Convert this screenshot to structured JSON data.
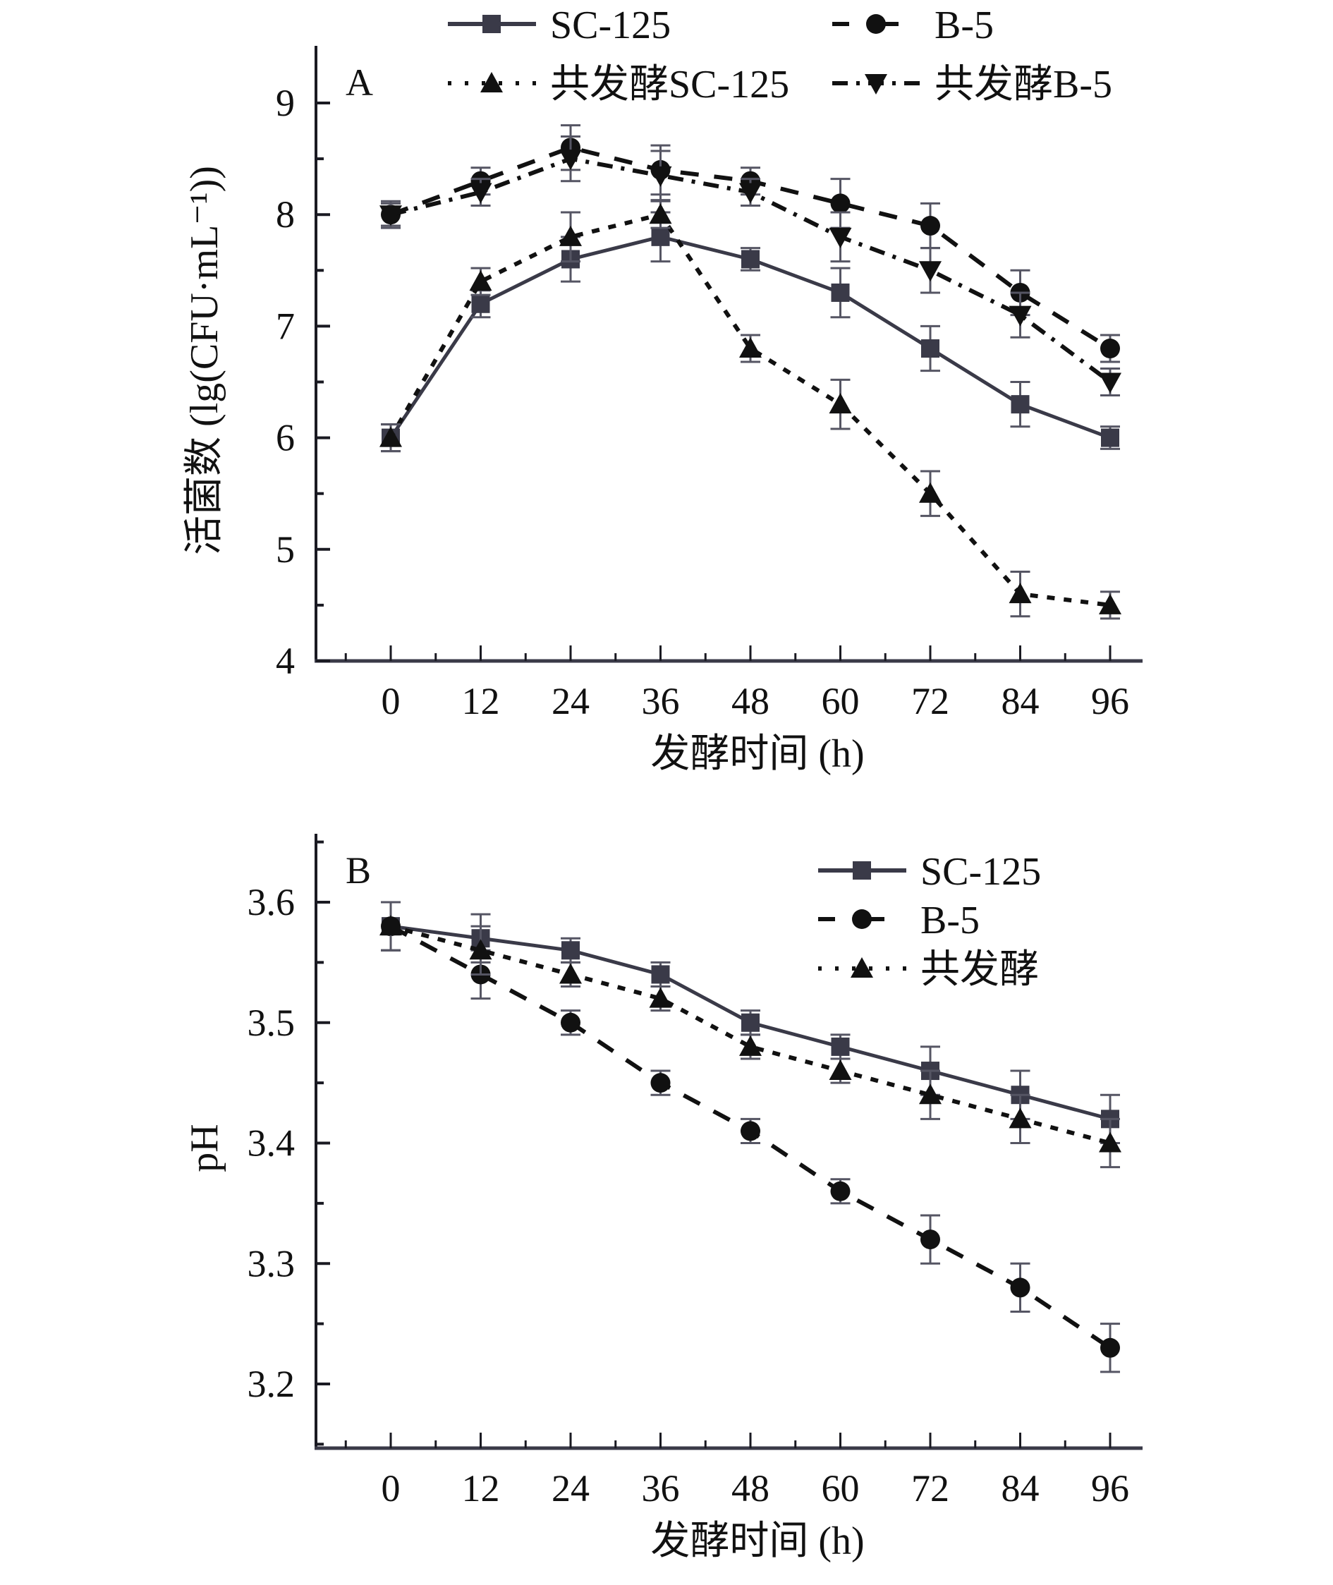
{
  "chart_data": [
    {
      "type": "line",
      "panel_label": "A",
      "title": "",
      "xlabel": "发酵时间 (h)",
      "ylabel": "活菌数 (lg(CFU·mL⁻¹))",
      "x": [
        0,
        12,
        24,
        36,
        48,
        60,
        72,
        84,
        96
      ],
      "x_ticks": [
        "0",
        "12",
        "24",
        "36",
        "48",
        "60",
        "72",
        "84",
        "96"
      ],
      "xlim": [
        -10,
        100
      ],
      "ylim": [
        4,
        9.5
      ],
      "y_ticks": [
        "4",
        "5",
        "6",
        "7",
        "8",
        "9"
      ],
      "y_tick_values": [
        4,
        5,
        6,
        7,
        8,
        9
      ],
      "grid": false,
      "legend_position": "top",
      "series": [
        {
          "name": "SC-125",
          "marker": "square",
          "line": "solid",
          "color": "#3a3a48",
          "values": [
            6.0,
            7.2,
            7.6,
            7.8,
            7.6,
            7.3,
            6.8,
            6.3,
            6.0
          ],
          "errors": [
            0.12,
            0.12,
            0.2,
            0.22,
            0.1,
            0.22,
            0.2,
            0.2,
            0.1
          ]
        },
        {
          "name": "B-5",
          "marker": "circle",
          "line": "dashed",
          "color": "#111111",
          "values": [
            8.0,
            8.3,
            8.6,
            8.4,
            8.3,
            8.1,
            7.9,
            7.3,
            6.8
          ],
          "errors": [
            0.1,
            0.12,
            0.2,
            0.22,
            0.12,
            0.22,
            0.2,
            0.2,
            0.12
          ]
        },
        {
          "name": "共发酵SC-125",
          "marker": "triangle-up",
          "line": "dotted",
          "color": "#111111",
          "values": [
            6.0,
            7.4,
            7.8,
            8.0,
            6.8,
            6.3,
            5.5,
            4.6,
            4.5
          ],
          "errors": [
            0.12,
            0.12,
            0.22,
            0.12,
            0.12,
            0.22,
            0.2,
            0.2,
            0.12
          ]
        },
        {
          "name": "共发酵B-5",
          "marker": "triangle-down",
          "line": "dashdot",
          "color": "#111111",
          "values": [
            8.0,
            8.2,
            8.5,
            8.35,
            8.2,
            7.8,
            7.5,
            7.1,
            6.5
          ],
          "errors": [
            0.12,
            0.12,
            0.2,
            0.22,
            0.12,
            0.22,
            0.2,
            0.2,
            0.12
          ]
        }
      ]
    },
    {
      "type": "line",
      "panel_label": "B",
      "title": "",
      "xlabel": "发酵时间 (h)",
      "ylabel": "pH",
      "x": [
        0,
        12,
        24,
        36,
        48,
        60,
        72,
        84,
        96
      ],
      "x_ticks": [
        "0",
        "12",
        "24",
        "36",
        "48",
        "60",
        "72",
        "84",
        "96"
      ],
      "xlim": [
        -10,
        100
      ],
      "ylim": [
        3.14,
        3.65
      ],
      "y_ticks": [
        "3.2",
        "3.3",
        "3.4",
        "3.5",
        "3.6"
      ],
      "y_tick_values": [
        3.2,
        3.3,
        3.4,
        3.5,
        3.6
      ],
      "grid": false,
      "legend_position": "top-right",
      "series": [
        {
          "name": "SC-125",
          "marker": "square",
          "line": "solid",
          "color": "#3a3a48",
          "values": [
            3.58,
            3.57,
            3.56,
            3.54,
            3.5,
            3.48,
            3.46,
            3.44,
            3.42
          ],
          "errors": [
            0.02,
            0.02,
            0.01,
            0.01,
            0.01,
            0.01,
            0.02,
            0.02,
            0.02
          ]
        },
        {
          "name": "B-5",
          "marker": "circle",
          "line": "dashed",
          "color": "#111111",
          "values": [
            3.58,
            3.54,
            3.5,
            3.45,
            3.41,
            3.36,
            3.32,
            3.28,
            3.23
          ],
          "errors": [
            0.02,
            0.02,
            0.01,
            0.01,
            0.01,
            0.01,
            0.02,
            0.02,
            0.02
          ]
        },
        {
          "name": "共发酵",
          "marker": "triangle-up",
          "line": "dotted",
          "color": "#111111",
          "values": [
            3.58,
            3.56,
            3.54,
            3.52,
            3.48,
            3.46,
            3.44,
            3.42,
            3.4
          ],
          "errors": [
            0.02,
            0.02,
            0.01,
            0.01,
            0.01,
            0.01,
            0.02,
            0.02,
            0.02
          ]
        }
      ]
    }
  ]
}
